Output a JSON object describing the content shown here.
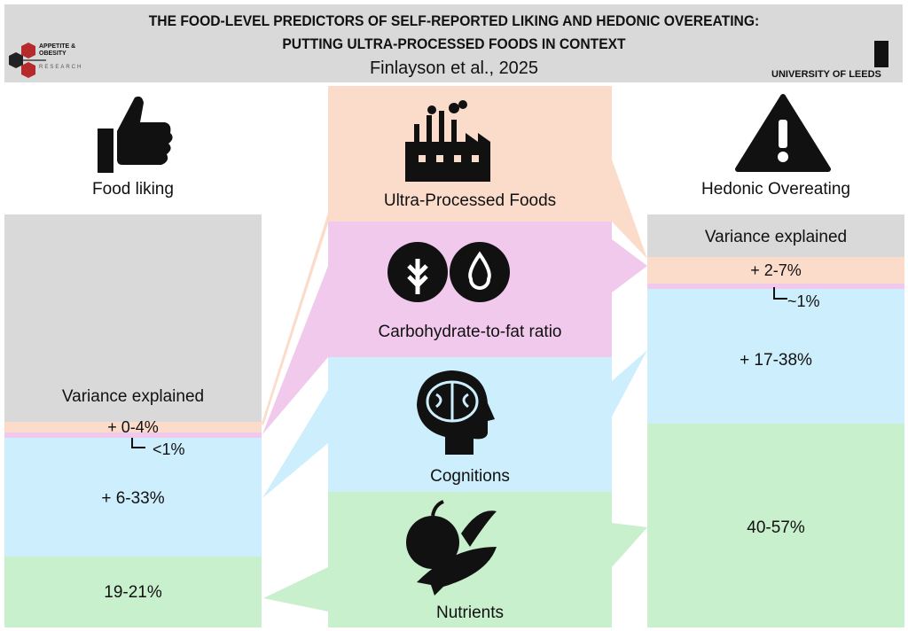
{
  "header": {
    "title_line1": "THE FOOD-LEVEL PREDICTORS OF SELF-REPORTED LIKING AND HEDONIC OVEREATING:",
    "title_line2": "PUTTING ULTRA-PROCESSED FOODS IN CONTEXT",
    "citation": "Finlayson et al., 2025",
    "left_logo": {
      "line1": "APPETITE &",
      "line2": "OBESITY",
      "line3": "RESEARCH"
    },
    "right_logo": "UNIVERSITY OF LEEDS"
  },
  "colors": {
    "header": "#d9d9d9",
    "upf": "#fbdccb",
    "carb_fat": "#f0c9ec",
    "cognitions": "#cdeefc",
    "nutrients": "#c9f0cc",
    "variance": "#d9d9d9"
  },
  "left": {
    "title": "Food liking",
    "icon": "thumbs-up-icon",
    "variance_label": "Variance explained",
    "upf": "+ 0-4%",
    "carb_fat": "<1%",
    "cognitions": "+ 6-33%",
    "nutrients": "19-21%"
  },
  "middle": {
    "upf": {
      "label": "Ultra-Processed Foods",
      "icon": "factory-icon"
    },
    "carb_fat": {
      "label": "Carbohydrate-to-fat ratio",
      "icons": [
        "wheat-icon",
        "droplet-icon"
      ]
    },
    "cognitions": {
      "label": "Cognitions",
      "icon": "brain-head-icon"
    },
    "nutrients": {
      "label": "Nutrients",
      "icon": "food-icon"
    }
  },
  "right": {
    "title": "Hedonic Overeating",
    "icon": "warning-icon",
    "variance_label": "Variance explained",
    "upf": "+ 2-7%",
    "carb_fat": "~1%",
    "cognitions": "+ 17-38%",
    "nutrients": "40-57%"
  }
}
